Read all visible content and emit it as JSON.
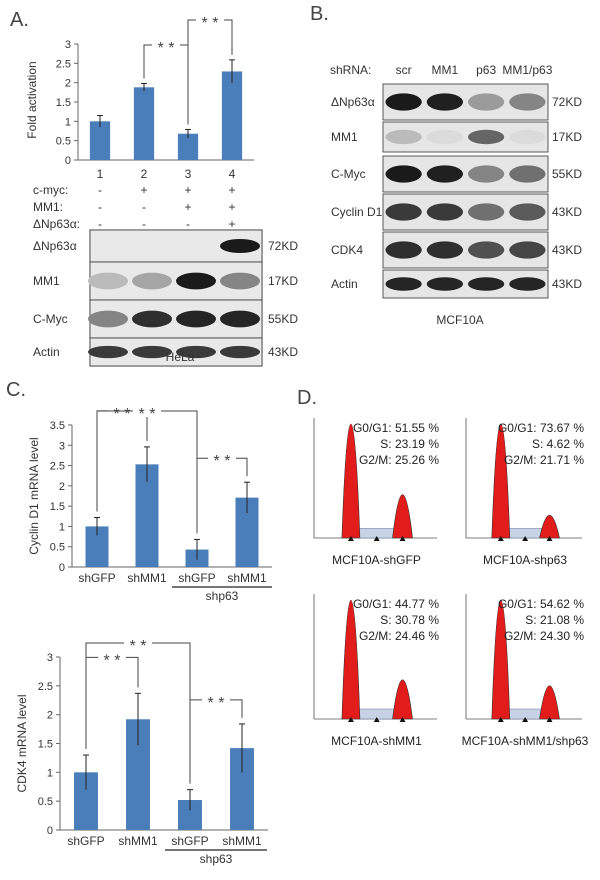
{
  "panels": {
    "A": {
      "letter": "A.",
      "chart_data": {
        "type": "bar",
        "categories": [
          "1",
          "2",
          "3",
          "4"
        ],
        "values": [
          1.0,
          1.88,
          0.68,
          2.29
        ],
        "errors": [
          0.15,
          0.1,
          0.11,
          0.3
        ],
        "ylabel": "Fold activation",
        "ylim": [
          0,
          3
        ],
        "yticks": [
          "0",
          "0.5",
          "1",
          "1.5",
          "2",
          "2.5",
          "3"
        ],
        "significance": [
          {
            "from": 1,
            "to": 2,
            "label": "* *"
          },
          {
            "from": 2,
            "to": 3,
            "label": "* *"
          }
        ],
        "bar_color": "#4a7ebb"
      },
      "conditions": [
        {
          "label": "c-myc:",
          "marks": [
            "-",
            "+",
            "+",
            "+"
          ]
        },
        {
          "label": "MM1:",
          "marks": [
            "-",
            "-",
            "+",
            "+"
          ]
        },
        {
          "label": "ΔNp63α:",
          "marks": [
            "-",
            "-",
            "-",
            "+"
          ]
        }
      ],
      "blot": {
        "rows": [
          {
            "label": "ΔNp63α",
            "size": "72KD",
            "intensity": [
              0,
              0,
              0,
              0.95
            ]
          },
          {
            "label": "MM1",
            "size": "17KD",
            "intensity": [
              0.2,
              0.3,
              0.95,
              0.45
            ]
          },
          {
            "label": "C-Myc",
            "size": "55KD",
            "intensity": [
              0.45,
              0.85,
              0.9,
              0.9
            ]
          },
          {
            "label": "Actin",
            "size": "43KD",
            "intensity": [
              0.8,
              0.8,
              0.8,
              0.8
            ]
          }
        ],
        "cell_line": "HeLa"
      }
    },
    "B": {
      "letter": "B.",
      "shrna_label": "shRNA:",
      "lanes": [
        "scr",
        "MM1",
        "p63",
        "MM1/p63"
      ],
      "blot": {
        "rows": [
          {
            "label": "ΔNp63α",
            "size": "72KD",
            "intensity": [
              0.95,
              0.92,
              0.35,
              0.45
            ]
          },
          {
            "label": "MM1",
            "size": "17KD",
            "intensity": [
              0.2,
              0.05,
              0.6,
              0.05
            ]
          },
          {
            "label": "C-Myc",
            "size": "55KD",
            "intensity": [
              0.95,
              0.92,
              0.45,
              0.55
            ]
          },
          {
            "label": "Cyclin D1",
            "size": "43KD",
            "intensity": [
              0.8,
              0.8,
              0.55,
              0.65
            ]
          },
          {
            "label": "CDK4",
            "size": "43KD",
            "intensity": [
              0.85,
              0.85,
              0.7,
              0.75
            ]
          },
          {
            "label": "Actin",
            "size": "43KD",
            "intensity": [
              0.9,
              0.9,
              0.9,
              0.9
            ]
          }
        ],
        "cell_line": "MCF10A"
      }
    },
    "C": {
      "letter": "C.",
      "charts": [
        {
          "type": "bar",
          "categories": [
            "shGFP",
            "shMM1",
            "shGFP",
            "shMM1"
          ],
          "values": [
            1.0,
            2.53,
            0.43,
            1.71
          ],
          "errors": [
            0.22,
            0.43,
            0.25,
            0.38
          ],
          "ylabel": "Cyclin D1 mRNA level",
          "ylim": [
            0,
            3.5
          ],
          "yticks": [
            "0",
            "0.5",
            "1",
            "1.5",
            "2",
            "2.5",
            "3",
            "3.5"
          ],
          "group_label": "shp63",
          "significance": [
            {
              "from": 0,
              "to": 1,
              "label": "* *"
            },
            {
              "from": 2,
              "to": 3,
              "label": "* *"
            },
            {
              "from": 0,
              "to": 2,
              "label": "* *"
            }
          ]
        },
        {
          "type": "bar",
          "categories": [
            "shGFP",
            "shMM1",
            "shGFP",
            "shMM1"
          ],
          "values": [
            1.0,
            1.92,
            0.52,
            1.42
          ],
          "errors": [
            0.3,
            0.45,
            0.18,
            0.42
          ],
          "ylabel": "CDK4 mRNA level",
          "ylim": [
            0,
            3
          ],
          "yticks": [
            "0",
            "0.5",
            "1",
            "1.5",
            "2",
            "2.5",
            "3"
          ],
          "group_label": "shp63",
          "significance": [
            {
              "from": 0,
              "to": 1,
              "label": "* *"
            },
            {
              "from": 2,
              "to": 3,
              "label": "* *"
            },
            {
              "from": 0,
              "to": 2,
              "label": "* *"
            }
          ]
        }
      ]
    },
    "D": {
      "letter": "D.",
      "histograms": [
        {
          "name": "MCF10A-shGFP",
          "g0g1": "G0/G1: 51.55 %",
          "s": "S: 23.19 %",
          "g2m": "G2/M: 25.26 %",
          "peak1": 1.0,
          "peak2": 0.38
        },
        {
          "name": "MCF10A-shp63",
          "g0g1": "G0/G1: 73.67 %",
          "s": "S: 4.62 %",
          "g2m": "G2/M: 21.71 %",
          "peak1": 1.0,
          "peak2": 0.2
        },
        {
          "name": "MCF10A-shMM1",
          "g0g1": "G0/G1: 44.77 %",
          "s": "S: 30.78 %",
          "g2m": "G2/M: 24.46 %",
          "peak1": 1.0,
          "peak2": 0.33
        },
        {
          "name": "MCF10A-shMM1/shp63",
          "g0g1": "G0/G1: 54.62 %",
          "s": "S: 21.08 %",
          "g2m": "G2/M: 24.30 %",
          "peak1": 1.0,
          "peak2": 0.28
        }
      ]
    }
  }
}
